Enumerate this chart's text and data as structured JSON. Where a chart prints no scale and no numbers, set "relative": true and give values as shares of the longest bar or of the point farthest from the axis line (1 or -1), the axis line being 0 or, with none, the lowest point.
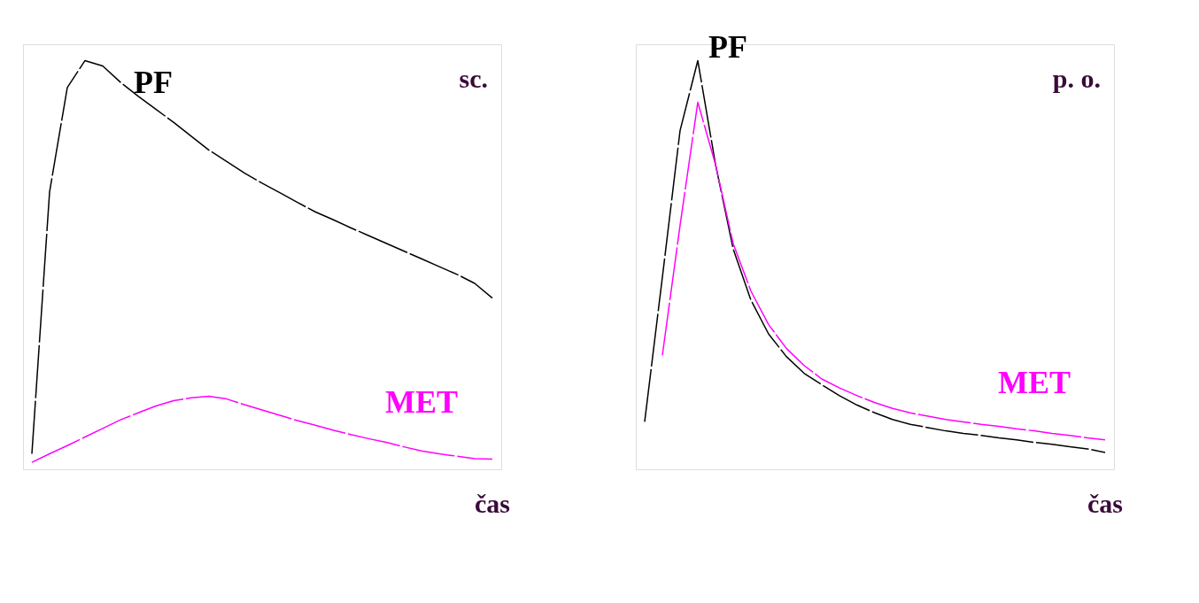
{
  "chart_data": [
    {
      "type": "line",
      "relative": true,
      "xlabel": "čas",
      "annotations": [
        "sc."
      ],
      "line_style": "dashed",
      "categories": [
        null,
        null,
        null,
        null,
        null,
        null,
        null,
        null,
        null,
        null,
        null,
        null,
        null,
        null,
        null,
        null,
        null,
        null,
        null,
        null,
        null,
        null,
        null,
        null,
        null,
        null,
        null
      ],
      "series": [
        {
          "name": "PF",
          "color": "#000000",
          "values": [
            0.038,
            0.679,
            0.934,
            1.0,
            0.987,
            0.947,
            0.913,
            0.881,
            0.849,
            0.815,
            0.781,
            0.753,
            0.725,
            0.7,
            0.677,
            0.653,
            0.63,
            0.611,
            0.591,
            0.572,
            0.553,
            0.534,
            0.515,
            0.496,
            0.477,
            0.455,
            0.419
          ]
        },
        {
          "name": "MET",
          "color": "#ff00ff",
          "values": [
            0.017,
            0.038,
            0.058,
            0.079,
            0.1,
            0.121,
            0.138,
            0.155,
            0.168,
            0.175,
            0.179,
            0.172,
            0.158,
            0.145,
            0.132,
            0.119,
            0.108,
            0.096,
            0.085,
            0.075,
            0.066,
            0.055,
            0.045,
            0.038,
            0.032,
            0.026,
            0.025
          ]
        }
      ]
    },
    {
      "type": "line",
      "relative": true,
      "xlabel": "čas",
      "annotations": [
        "p. o."
      ],
      "line_style": "dashed",
      "categories": [
        null,
        null,
        null,
        null,
        null,
        null,
        null,
        null,
        null,
        null,
        null,
        null,
        null,
        null,
        null,
        null,
        null,
        null,
        null,
        null,
        null,
        null,
        null,
        null,
        null,
        null,
        null
      ],
      "series": [
        {
          "name": "PF",
          "color": "#000000",
          "values": [
            0.116,
            0.47,
            0.829,
            1.0,
            0.746,
            0.539,
            0.414,
            0.331,
            0.276,
            0.235,
            0.207,
            0.18,
            0.157,
            0.138,
            0.122,
            0.11,
            0.102,
            0.094,
            0.088,
            0.083,
            0.077,
            0.072,
            0.066,
            0.061,
            0.055,
            0.05,
            0.041
          ]
        },
        {
          "name": "MET",
          "color": "#ff00ff",
          "values": [
            null,
            0.279,
            0.597,
            0.898,
            0.746,
            0.552,
            0.436,
            0.354,
            0.296,
            0.254,
            0.221,
            0.199,
            0.18,
            0.163,
            0.149,
            0.138,
            0.13,
            0.122,
            0.116,
            0.11,
            0.105,
            0.099,
            0.094,
            0.088,
            0.083,
            0.077,
            0.072
          ]
        }
      ]
    }
  ]
}
